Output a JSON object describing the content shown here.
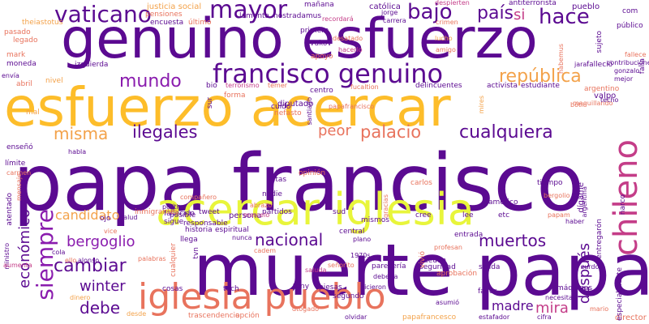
{
  "palette": {
    "purple": "#5b0a91",
    "violet": "#8a1cae",
    "yellow": "#fdbd2a",
    "lightyellow": "#e8f53b",
    "salmon": "#e8735d",
    "pink": "#c43d88",
    "orange": "#f3a24a"
  },
  "words": [
    "papa francisco",
    "muerte papa",
    "genuino esfuerzo",
    "esfuerzo acercar",
    "acercar iglesia",
    "iglesia pueblo",
    "chileno",
    "francisco genuino",
    "vaticano",
    "mayor",
    "bajo",
    "país",
    "hace",
    "mundo",
    "república",
    "ilegales",
    "palacio",
    "cualquiera",
    "misma",
    "peor",
    "candidato",
    "bergoglio",
    "nacional",
    "muertos",
    "cambiar",
    "siempre",
    "económico",
    "winter",
    "debe",
    "madre",
    "mira",
    "después",
    "si",
    "justicia social",
    "pensiones",
    "católica",
    "antiterrorista",
    "despierten",
    "pueblo",
    "mañana",
    "nostradamus",
    "lamenta",
    "jorge",
    "carrera",
    "crimen",
    "com",
    "público",
    "sujeto",
    "encuesta",
    "último",
    "theiastotus",
    "legado",
    "pasado",
    "mark",
    "moneda",
    "envía",
    "abril",
    "nivel",
    "primera",
    "vukov",
    "hacerlo",
    "amigo",
    "recordará",
    "desatado",
    "apoyo",
    "izquierda",
    "mal",
    "diputado",
    "nefasto",
    "centro",
    "bio",
    "terrorismo",
    "temer",
    "fucaltion",
    "estudiante",
    "activista",
    "delincuentes",
    "falleció",
    "tweet",
    "compañero",
    "política",
    "posible",
    "responsable",
    "fallecido",
    "sigue",
    "persona",
    "inmigrantes",
    "partidos",
    "sud",
    "opinión",
    "cree",
    "nadie",
    "fritas",
    "carlos",
    "tiempo",
    "dígame",
    "américo",
    "bergolio",
    "papam",
    "haber",
    "entregarón",
    "argentina",
    "narco",
    "etc",
    "lee",
    "mismos",
    "deuda",
    "ojo",
    "salud",
    "gracias",
    "central",
    "plano",
    "entrada",
    "parecería",
    "seguridad",
    "salida",
    "historia",
    "espiritual",
    "llega",
    "nunca",
    "cadem",
    "1970s",
    "vice",
    "cola",
    "ello",
    "alonso",
    "palabras",
    "cualquier",
    "tvn",
    "cosas",
    "tech",
    "tony",
    "segundo",
    "piesas",
    "hicieron",
    "vivió",
    "aprobación",
    "favor",
    "máquinas",
    "necesita",
    "mario",
    "debería",
    "saluda",
    "señorito",
    "profesan",
    "asumió",
    "trascendencia",
    "opción",
    "dtogado",
    "olvidar",
    "papafrancesco",
    "estafador",
    "cifra",
    "director",
    "especialmente",
    "ministro",
    "mensaje",
    "atentado",
    "límite",
    "enseñó",
    "carmen",
    "habla",
    "valpo",
    "maquillando",
    "techo",
    "bótic",
    "mejor",
    "argentino",
    "gonzalo",
    "contribuciones",
    "falla",
    "fallece",
    "jara",
    "habemus",
    "forma",
    "sur",
    "cuido",
    "santiago",
    "abrazo",
    "marcelo",
    "papafrancisco",
    "aumenta",
    "zurdos",
    "desde",
    "dinero",
    "lucho",
    "mires"
  ]
}
